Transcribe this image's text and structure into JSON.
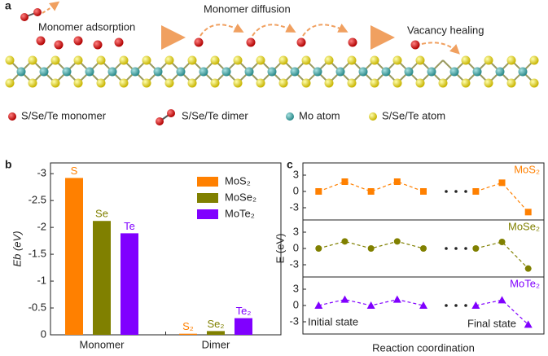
{
  "panel_a": {
    "label": "a",
    "steps": [
      "Monomer adsorption",
      "Monomer diffusion",
      "Vacancy healing"
    ],
    "legend": [
      "S/Se/Te monomer",
      "S/Se/Te dimer",
      "Mo atom",
      "S/Se/Te atom"
    ]
  },
  "chart_data": [
    {
      "type": "bar",
      "panel_label": "b",
      "y_label": "Eb (eV)",
      "categories": [
        "Monomer",
        "Dimer"
      ],
      "series": [
        {
          "name": "MoS₂",
          "color": "#ff8000",
          "values": [
            -2.92,
            -0.02
          ],
          "value_labels": [
            "S",
            "S₂"
          ]
        },
        {
          "name": "MoSe₂",
          "color": "#808000",
          "values": [
            -2.12,
            -0.07
          ],
          "value_labels": [
            "Se",
            "Se₂"
          ]
        },
        {
          "name": "MoTe₂",
          "color": "#8000ff",
          "values": [
            -1.89,
            -0.31
          ],
          "value_labels": [
            "Te",
            "Te₂"
          ]
        }
      ],
      "ylim": [
        0,
        -3.2
      ],
      "yticks": [
        0,
        -0.5,
        -1,
        -1.5,
        -2,
        -2.5,
        -3
      ]
    },
    {
      "type": "line",
      "panel_label": "c",
      "y_label": "E (eV)",
      "x_label": "Reaction coordination",
      "annotations": [
        "Initial state",
        "Final state"
      ],
      "x": [
        0,
        1,
        2,
        3,
        4,
        5,
        6,
        7,
        8
      ],
      "xlim": [
        -0.6,
        8.6
      ],
      "series": [
        {
          "name": "MoS₂",
          "color": "#ff8000",
          "marker": "square",
          "values": [
            0,
            1.8,
            0,
            1.8,
            0,
            null,
            0,
            1.6,
            -3.8
          ]
        },
        {
          "name": "MoSe₂",
          "color": "#808000",
          "marker": "circle",
          "values": [
            0,
            1.3,
            0,
            1.3,
            0,
            null,
            0,
            1.2,
            -3.7
          ]
        },
        {
          "name": "MoTe₂",
          "color": "#8000ff",
          "marker": "triangle",
          "values": [
            0,
            1.1,
            0,
            1.1,
            0,
            null,
            0,
            1.0,
            -3.5
          ]
        }
      ],
      "ylim": [
        -5.25,
        5.25
      ],
      "yticks": [
        3,
        0,
        -3
      ]
    }
  ]
}
